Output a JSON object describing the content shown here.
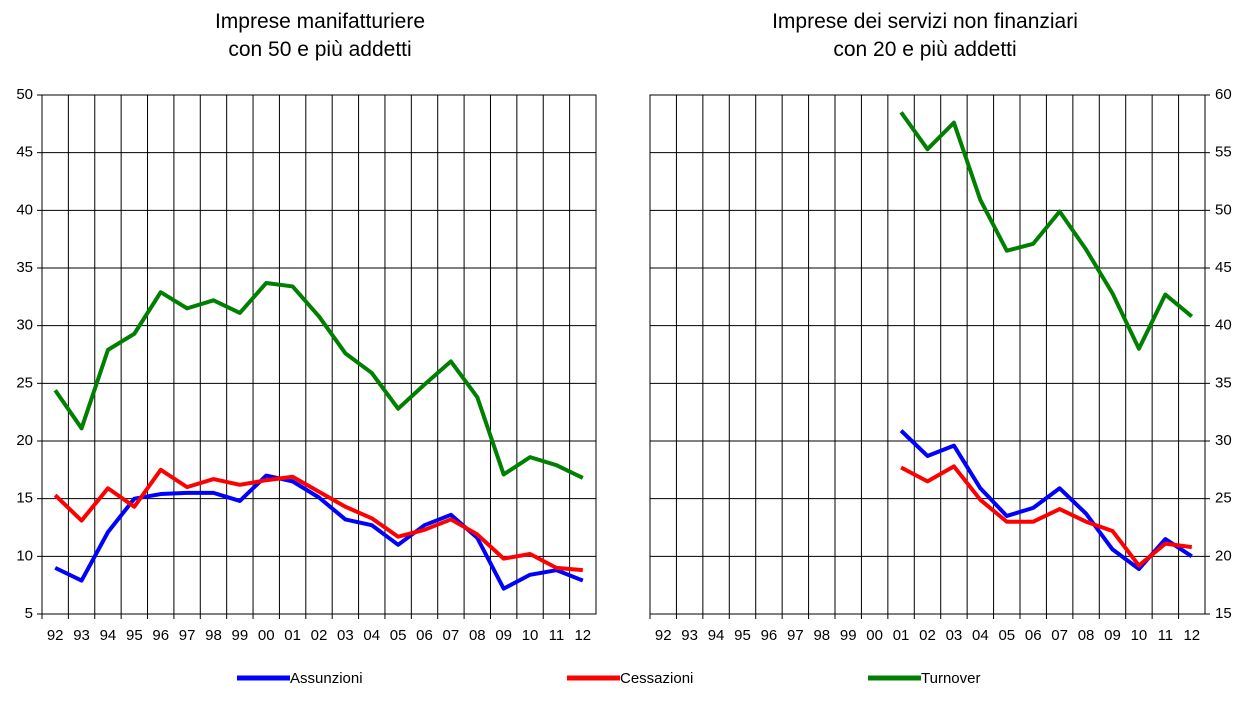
{
  "chart_data": [
    {
      "type": "line",
      "title": "Imprese manifatturiere\ncon 50 e più addetti",
      "categories": [
        "92",
        "93",
        "94",
        "95",
        "96",
        "97",
        "98",
        "99",
        "00",
        "01",
        "02",
        "03",
        "04",
        "05",
        "06",
        "07",
        "08",
        "09",
        "10",
        "11",
        "12"
      ],
      "ylim": [
        5,
        50
      ],
      "yticks": [
        5,
        10,
        15,
        20,
        25,
        30,
        35,
        40,
        45,
        50
      ],
      "grid": true,
      "yaxis_side": "left",
      "series": [
        {
          "name": "Assunzioni",
          "color": "#0000ff",
          "values": [
            9.0,
            7.9,
            12.1,
            15.0,
            15.4,
            15.5,
            15.5,
            14.8,
            17.0,
            16.5,
            15.1,
            13.2,
            12.7,
            11.0,
            12.7,
            13.6,
            11.6,
            7.2,
            8.4,
            8.8,
            7.9
          ]
        },
        {
          "name": "Cessazioni",
          "color": "#ff0000",
          "values": [
            15.3,
            13.1,
            15.9,
            14.3,
            17.5,
            16.0,
            16.7,
            16.2,
            16.6,
            16.9,
            15.6,
            14.3,
            13.3,
            11.7,
            12.3,
            13.2,
            11.9,
            9.8,
            10.2,
            9.0,
            8.8
          ]
        },
        {
          "name": "Turnover",
          "color": "#008000",
          "values": [
            24.4,
            21.1,
            27.9,
            29.3,
            32.9,
            31.5,
            32.2,
            31.1,
            33.7,
            33.4,
            30.8,
            27.6,
            25.9,
            22.8,
            24.9,
            26.9,
            23.8,
            17.1,
            18.6,
            17.9,
            16.8
          ]
        }
      ]
    },
    {
      "type": "line",
      "title": "Imprese dei servizi non finanziari\ncon 20 e più addetti",
      "categories": [
        "92",
        "93",
        "94",
        "95",
        "96",
        "97",
        "98",
        "99",
        "00",
        "01",
        "02",
        "03",
        "04",
        "05",
        "06",
        "07",
        "08",
        "09",
        "10",
        "11",
        "12"
      ],
      "ylim": [
        15,
        60
      ],
      "yticks": [
        15,
        20,
        25,
        30,
        35,
        40,
        45,
        50,
        55,
        60
      ],
      "grid": true,
      "yaxis_side": "right",
      "series": [
        {
          "color": "#0000ff",
          "values": [
            null,
            null,
            null,
            null,
            null,
            null,
            null,
            null,
            null,
            30.9,
            28.7,
            29.6,
            25.9,
            23.5,
            24.2,
            25.9,
            23.7,
            20.6,
            18.9,
            21.5,
            20.0
          ]
        },
        {
          "color": "#ff0000",
          "values": [
            null,
            null,
            null,
            null,
            null,
            null,
            null,
            null,
            null,
            27.7,
            26.5,
            27.8,
            24.9,
            23.0,
            23.0,
            24.1,
            23.0,
            22.2,
            19.2,
            21.1,
            20.8
          ]
        },
        {
          "color": "#008000",
          "values": [
            null,
            null,
            null,
            null,
            null,
            null,
            null,
            null,
            null,
            58.5,
            55.3,
            57.6,
            50.9,
            46.5,
            47.1,
            49.9,
            46.6,
            42.8,
            38.0,
            42.7,
            40.8
          ]
        }
      ]
    }
  ]
}
